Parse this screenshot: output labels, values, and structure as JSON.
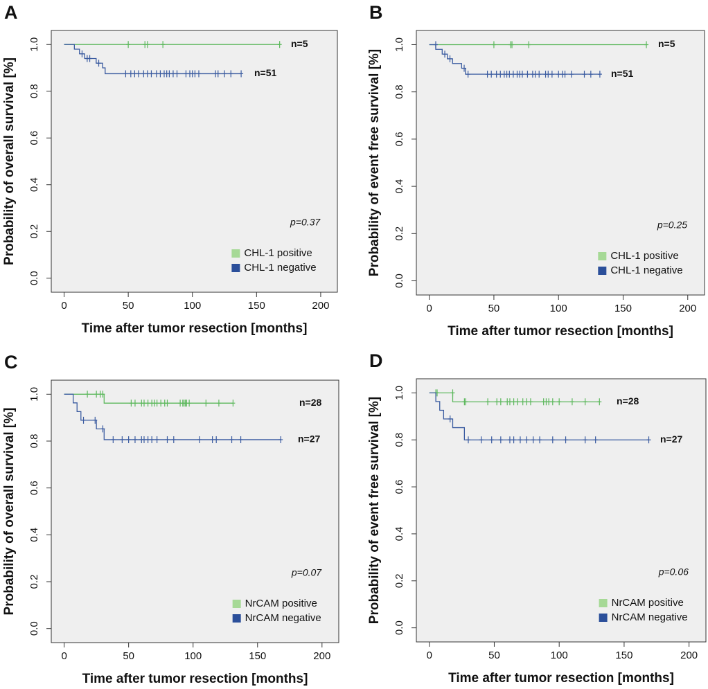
{
  "chart_data": [
    {
      "type": "survival",
      "panel": "A",
      "x_label": "Time after tumor resection [months]",
      "y_label": "Probability of overall survival [%]",
      "p_value": "p=0.37",
      "xlim": [
        -10,
        213
      ],
      "ylim": [
        -0.06,
        1.06
      ],
      "xticks": [
        0,
        50,
        100,
        150,
        200
      ],
      "yticks": [
        {
          "value": 0,
          "label": "0.0"
        },
        0.2,
        0.4,
        0.6,
        0.8,
        {
          "value": 1,
          "label": "1.0"
        }
      ],
      "series": [
        {
          "name": "CHL-1 positive",
          "label": "n=5",
          "color": "#5cb85c",
          "x": [
            0,
            168
          ],
          "values": [
            1,
            1
          ],
          "censor_x": [
            50,
            63,
            65,
            77,
            168
          ],
          "censor_values": [
            1,
            1,
            1,
            1,
            1
          ]
        },
        {
          "name": "CHL-1 negative",
          "label": "n=51",
          "color": "#3a5ba0",
          "x": [
            0,
            8,
            12,
            16,
            25,
            30,
            32,
            138
          ],
          "values": [
            1,
            0.98,
            0.96,
            0.94,
            0.92,
            0.9,
            0.875,
            0.875
          ],
          "censor_x": [
            14,
            18,
            20,
            27,
            48,
            52,
            55,
            58,
            62,
            65,
            68,
            72,
            75,
            78,
            80,
            82,
            85,
            88,
            95,
            98,
            100,
            102,
            105,
            118,
            120,
            125,
            130,
            138
          ],
          "censor_values": [
            0.96,
            0.94,
            0.94,
            0.92,
            0.875,
            0.875,
            0.875,
            0.875,
            0.875,
            0.875,
            0.875,
            0.875,
            0.875,
            0.875,
            0.875,
            0.875,
            0.875,
            0.875,
            0.875,
            0.875,
            0.875,
            0.875,
            0.875,
            0.875,
            0.875,
            0.875,
            0.875,
            0.875
          ]
        }
      ]
    },
    {
      "type": "survival",
      "panel": "B",
      "x_label": "Time after tumor resection [months]",
      "y_label": "Probability of event free survival [%]",
      "p_value": "p=0.25",
      "xlim": [
        -10,
        213
      ],
      "ylim": [
        -0.06,
        1.06
      ],
      "xticks": [
        0,
        50,
        100,
        150,
        200
      ],
      "yticks": [
        {
          "value": 0,
          "label": "0.0"
        },
        0.2,
        0.4,
        0.6,
        0.8,
        {
          "value": 1,
          "label": "1.0"
        }
      ],
      "series": [
        {
          "name": "CHL-1 positive",
          "label": "n=5",
          "color": "#5cb85c",
          "x": [
            0,
            168
          ],
          "values": [
            1,
            1
          ],
          "censor_x": [
            50,
            63,
            64,
            77,
            168
          ],
          "censor_values": [
            1,
            1,
            1,
            1,
            1
          ]
        },
        {
          "name": "CHL-1 negative",
          "label": "n=51",
          "color": "#3a5ba0",
          "x": [
            0,
            5,
            10,
            14,
            18,
            25,
            28,
            132
          ],
          "values": [
            1,
            0.98,
            0.96,
            0.94,
            0.92,
            0.9,
            0.875,
            0.875
          ],
          "censor_x": [
            5,
            12,
            16,
            27,
            30,
            45,
            48,
            52,
            55,
            58,
            60,
            62,
            65,
            68,
            70,
            72,
            76,
            80,
            82,
            85,
            90,
            92,
            95,
            100,
            103,
            105,
            110,
            120,
            125,
            132
          ],
          "censor_values": [
            1,
            0.96,
            0.94,
            0.9,
            0.875,
            0.875,
            0.875,
            0.875,
            0.875,
            0.875,
            0.875,
            0.875,
            0.875,
            0.875,
            0.875,
            0.875,
            0.875,
            0.875,
            0.875,
            0.875,
            0.875,
            0.875,
            0.875,
            0.875,
            0.875,
            0.875,
            0.875,
            0.875,
            0.875,
            0.875
          ]
        }
      ]
    },
    {
      "type": "survival",
      "panel": "C",
      "x_label": "Time after tumor resection [months]",
      "y_label": "Probability of overall survival [%]",
      "p_value": "p=0.07",
      "xlim": [
        -10,
        213
      ],
      "ylim": [
        -0.06,
        1.06
      ],
      "xticks": [
        0,
        50,
        100,
        150,
        200
      ],
      "yticks": [
        {
          "value": 0,
          "label": "0.0"
        },
        0.2,
        0.4,
        0.6,
        0.8,
        {
          "value": 1,
          "label": "1.0"
        }
      ],
      "series": [
        {
          "name": "NrCAM positive",
          "label": "n=28",
          "color": "#5cb85c",
          "x": [
            0,
            31,
            131
          ],
          "values": [
            1,
            0.962,
            0.962
          ],
          "censor_x": [
            18,
            25,
            28,
            30,
            52,
            55,
            60,
            62,
            65,
            68,
            70,
            72,
            75,
            78,
            80,
            90,
            92,
            93,
            94,
            95,
            97,
            110,
            120,
            131
          ],
          "censor_values": [
            1,
            1,
            1,
            1,
            0.962,
            0.962,
            0.962,
            0.962,
            0.962,
            0.962,
            0.962,
            0.962,
            0.962,
            0.962,
            0.962,
            0.962,
            0.962,
            0.962,
            0.962,
            0.962,
            0.962,
            0.962,
            0.962,
            0.962
          ]
        },
        {
          "name": "NrCAM negative",
          "label": "n=27",
          "color": "#3a5ba0",
          "x": [
            0,
            7,
            10,
            13,
            25,
            31,
            168
          ],
          "values": [
            1,
            0.963,
            0.926,
            0.889,
            0.852,
            0.806,
            0.806
          ],
          "censor_x": [
            15,
            24,
            30,
            38,
            45,
            50,
            55,
            60,
            62,
            65,
            68,
            72,
            80,
            85,
            105,
            115,
            118,
            130,
            137,
            168
          ],
          "censor_values": [
            0.889,
            0.889,
            0.852,
            0.806,
            0.806,
            0.806,
            0.806,
            0.806,
            0.806,
            0.806,
            0.806,
            0.806,
            0.806,
            0.806,
            0.806,
            0.806,
            0.806,
            0.806,
            0.806,
            0.806
          ]
        }
      ]
    },
    {
      "type": "survival",
      "panel": "D",
      "x_label": "Time after tumor resection [months]",
      "y_label": "Probability of event free survival [%]",
      "p_value": "p=0.06",
      "xlim": [
        -10,
        213
      ],
      "ylim": [
        -0.06,
        1.06
      ],
      "xticks": [
        0,
        50,
        100,
        150,
        200
      ],
      "yticks": [
        {
          "value": 0,
          "label": "0.0"
        },
        0.2,
        0.4,
        0.6,
        0.8,
        {
          "value": 1,
          "label": "1.0"
        }
      ],
      "series": [
        {
          "name": "NrCAM positive",
          "label": "n=28",
          "color": "#5cb85c",
          "x": [
            0,
            18,
            131
          ],
          "values": [
            1,
            0.962,
            0.962
          ],
          "censor_x": [
            5,
            6,
            18,
            27,
            28,
            45,
            52,
            55,
            60,
            62,
            65,
            68,
            72,
            75,
            78,
            88,
            90,
            92,
            95,
            100,
            110,
            120,
            131
          ],
          "censor_values": [
            1,
            1,
            1,
            0.962,
            0.962,
            0.962,
            0.962,
            0.962,
            0.962,
            0.962,
            0.962,
            0.962,
            0.962,
            0.962,
            0.962,
            0.962,
            0.962,
            0.962,
            0.962,
            0.962,
            0.962,
            0.962,
            0.962
          ]
        },
        {
          "name": "NrCAM negative",
          "label": "n=27",
          "color": "#3a5ba0",
          "x": [
            0,
            5,
            8,
            11,
            18,
            27,
            169
          ],
          "values": [
            1,
            0.963,
            0.926,
            0.889,
            0.852,
            0.8,
            0.8
          ],
          "censor_x": [
            16,
            30,
            40,
            48,
            55,
            62,
            65,
            70,
            75,
            80,
            85,
            95,
            105,
            120,
            128,
            169
          ],
          "censor_values": [
            0.889,
            0.8,
            0.8,
            0.8,
            0.8,
            0.8,
            0.8,
            0.8,
            0.8,
            0.8,
            0.8,
            0.8,
            0.8,
            0.8,
            0.8,
            0.8
          ]
        }
      ]
    }
  ]
}
